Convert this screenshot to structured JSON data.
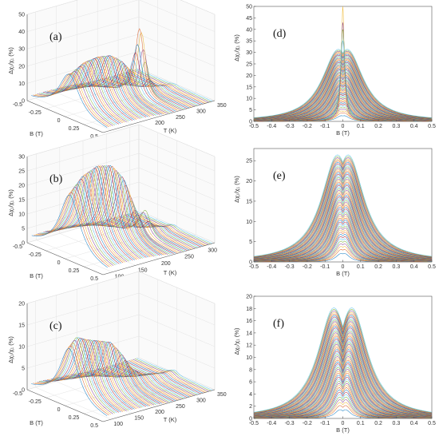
{
  "figure": {
    "panel_labels": [
      "(a)",
      "(b)",
      "(c)",
      "(d)",
      "(e)",
      "(f)"
    ],
    "ylabel_3d": "Δχ₁/χ₁ (%)",
    "ylabel_2d": "Δχ₁/χ₁ (%)",
    "xlabel_B": "B (T)",
    "xlabel_T": "T (K)"
  },
  "chart_data": [
    {
      "panel": "(a)",
      "type": "line",
      "view": "3d-waterfall",
      "xlabel": "B (T)",
      "ylabel": "T (K)",
      "zlabel": "Δχ₁/χ₁ (%)",
      "x_ticks": [
        "-0.5",
        "-0.25",
        "0",
        "0.25",
        "0.5"
      ],
      "y_ticks": [
        "100",
        "150",
        "200",
        "250",
        "300",
        "350"
      ],
      "z_ticks": [
        "0",
        "10",
        "20",
        "30",
        "40",
        "50"
      ],
      "xlim": [
        -0.5,
        0.5
      ],
      "ylim": [
        80,
        350
      ],
      "zlim": [
        0,
        50
      ],
      "peak_profile": [
        [
          100,
          22
        ],
        [
          130,
          26
        ],
        [
          160,
          27
        ],
        [
          190,
          26
        ],
        [
          215,
          22
        ],
        [
          240,
          15
        ],
        [
          255,
          30
        ],
        [
          262,
          45
        ],
        [
          268,
          30
        ],
        [
          280,
          10
        ],
        [
          300,
          3
        ],
        [
          330,
          1
        ]
      ],
      "width_profile": [
        [
          100,
          0.16
        ],
        [
          200,
          0.12
        ],
        [
          260,
          0.05
        ],
        [
          330,
          0.03
        ]
      ],
      "series_count": 55
    },
    {
      "panel": "(b)",
      "type": "line",
      "view": "3d-waterfall",
      "xlabel": "B (T)",
      "ylabel": "T (K)",
      "zlabel": "Δχ₁/χ₁ (%)",
      "x_ticks": [
        "-0.5",
        "-0.25",
        "0",
        "0.25",
        "0.5"
      ],
      "y_ticks": [
        "100",
        "150",
        "200",
        "250",
        "300"
      ],
      "z_ticks": [
        "0",
        "5",
        "10",
        "15",
        "20",
        "25",
        "30"
      ],
      "xlim": [
        -0.5,
        0.5
      ],
      "ylim": [
        80,
        320
      ],
      "zlim": [
        0,
        30
      ],
      "peak_profile": [
        [
          90,
          20
        ],
        [
          120,
          25
        ],
        [
          150,
          27
        ],
        [
          180,
          26
        ],
        [
          205,
          21
        ],
        [
          225,
          12
        ],
        [
          240,
          6
        ],
        [
          252,
          9
        ],
        [
          258,
          5
        ],
        [
          270,
          3
        ],
        [
          300,
          1
        ]
      ],
      "width_profile": [
        [
          90,
          0.16
        ],
        [
          200,
          0.11
        ],
        [
          300,
          0.04
        ]
      ],
      "series_count": 55
    },
    {
      "panel": "(c)",
      "type": "line",
      "view": "3d-waterfall",
      "xlabel": "B (T)",
      "ylabel": "T (K)",
      "zlabel": "Δχ₁/χ₁ (%)",
      "x_ticks": [
        "-0.5",
        "-0.25",
        "0",
        "0.25",
        "0.5"
      ],
      "y_ticks": [
        "100",
        "150",
        "200",
        "250",
        "300",
        "350"
      ],
      "z_ticks": [
        "0",
        "5",
        "10",
        "15",
        "20"
      ],
      "xlim": [
        -0.5,
        0.5
      ],
      "ylim": [
        80,
        350
      ],
      "zlim": [
        0,
        20
      ],
      "peak_profile": [
        [
          90,
          12
        ],
        [
          110,
          14
        ],
        [
          130,
          13
        ],
        [
          160,
          12
        ],
        [
          190,
          11
        ],
        [
          215,
          8
        ],
        [
          240,
          4
        ],
        [
          270,
          2
        ],
        [
          320,
          1
        ]
      ],
      "width_profile": [
        [
          90,
          0.15
        ],
        [
          200,
          0.11
        ],
        [
          320,
          0.05
        ]
      ],
      "series_count": 55
    },
    {
      "panel": "(d)",
      "type": "line",
      "xlabel": "B (T)",
      "ylabel": "Δχ₁/χ₁ (%)",
      "x_ticks": [
        "-0.5",
        "-0.4",
        "-0.3",
        "-0.2",
        "-0.1",
        "0",
        "0.1",
        "0.2",
        "0.3",
        "0.4",
        "0.5"
      ],
      "y_ticks": [
        "0",
        "5",
        "10",
        "15",
        "20",
        "25",
        "30",
        "35",
        "40",
        "45",
        "50"
      ],
      "xlim": [
        -0.5,
        0.5
      ],
      "ylim": [
        0,
        50
      ],
      "envelope_peak": 32,
      "envelope_peak_B": 0.025,
      "spike_peaks": [
        50,
        43,
        40,
        35
      ],
      "series_count": 55
    },
    {
      "panel": "(e)",
      "type": "line",
      "xlabel": "B (T)",
      "ylabel": "Δχ₁/χ₁ (%)",
      "x_ticks": [
        "-0.5",
        "-0.4",
        "-0.3",
        "-0.2",
        "-0.1",
        "0",
        "0.1",
        "0.2",
        "0.3",
        "0.4",
        "0.5"
      ],
      "y_ticks": [
        "0",
        "5",
        "10",
        "15",
        "20",
        "25"
      ],
      "xlim": [
        -0.5,
        0.5
      ],
      "ylim": [
        0,
        28
      ],
      "envelope_peak": 27,
      "envelope_peak_B": 0.03,
      "spike_peaks": [],
      "series_count": 55
    },
    {
      "panel": "(f)",
      "type": "line",
      "xlabel": "B (T)",
      "ylabel": "Δχ₁/χ₁ (%)",
      "x_ticks": [
        "-0.5",
        "-0.4",
        "-0.3",
        "-0.2",
        "-0.1",
        "0",
        "0.1",
        "0.2",
        "0.3",
        "0.4",
        "0.5"
      ],
      "y_ticks": [
        "0",
        "2",
        "4",
        "6",
        "8",
        "10",
        "12",
        "14",
        "16",
        "18",
        "20"
      ],
      "xlim": [
        -0.5,
        0.5
      ],
      "ylim": [
        0,
        20
      ],
      "envelope_peak": 18.5,
      "envelope_peak_B": 0.05,
      "spike_peaks": [],
      "series_count": 55
    }
  ],
  "palette": [
    "#0072bd",
    "#d95319",
    "#edb120",
    "#7e2f8e",
    "#77ac30",
    "#4dbeee",
    "#a2142f"
  ]
}
